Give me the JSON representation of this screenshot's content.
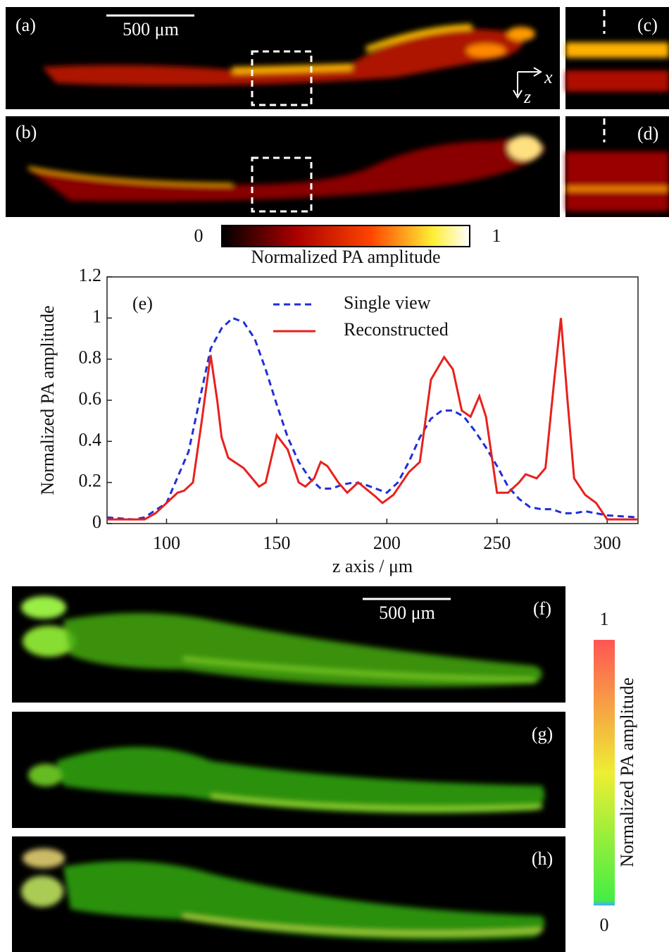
{
  "panel_labels": [
    "(a)",
    "(b)",
    "(c)",
    "(d)",
    "(f)",
    "(g)",
    "(h)"
  ],
  "scale_bars": [
    "500 μm",
    "500 μm"
  ],
  "axis_letters": [
    "x",
    "z"
  ],
  "colorbars": [
    {
      "min": 0,
      "max": 1,
      "label": "Normalized PA amplitude"
    },
    {
      "min": 0,
      "max": 1,
      "label": "Normalized PA amplitude"
    }
  ],
  "chart_data": {
    "type": "line",
    "panel_label": "(e)",
    "x_label": "z axis / μm",
    "y_label": "Normalized PA amplitude",
    "xlim": [
      73,
      314
    ],
    "ylim": [
      0,
      1.2
    ],
    "xticks": [
      100,
      150,
      200,
      250,
      300
    ],
    "yticks": [
      0,
      0.2,
      0.4,
      0.6,
      0.8,
      1,
      1.2
    ],
    "legend": "top-center",
    "series": [
      {
        "name": "Single view",
        "color": "#1f2fd8",
        "dash": true,
        "x": [
          73,
          85,
          90,
          100,
          110,
          115,
          120,
          125,
          130,
          135,
          140,
          145,
          150,
          155,
          160,
          165,
          170,
          175,
          180,
          185,
          190,
          195,
          200,
          205,
          210,
          215,
          220,
          225,
          230,
          235,
          240,
          245,
          250,
          255,
          260,
          265,
          270,
          275,
          280,
          285,
          290,
          295,
          300,
          314
        ],
        "values": [
          0.03,
          0.02,
          0.03,
          0.1,
          0.35,
          0.6,
          0.85,
          0.95,
          1.0,
          0.98,
          0.9,
          0.75,
          0.58,
          0.42,
          0.3,
          0.22,
          0.17,
          0.17,
          0.19,
          0.2,
          0.19,
          0.17,
          0.15,
          0.2,
          0.3,
          0.42,
          0.51,
          0.55,
          0.55,
          0.52,
          0.45,
          0.37,
          0.28,
          0.18,
          0.12,
          0.08,
          0.07,
          0.07,
          0.05,
          0.05,
          0.06,
          0.05,
          0.04,
          0.03
        ]
      },
      {
        "name": "Reconstructed",
        "color": "#e8201c",
        "dash": false,
        "x": [
          73,
          90,
          95,
          100,
          105,
          108,
          112,
          116,
          120,
          123,
          125,
          128,
          135,
          142,
          145,
          150,
          155,
          160,
          163,
          167,
          170,
          173,
          178,
          182,
          187,
          195,
          198,
          203,
          210,
          215,
          220,
          226,
          230,
          234,
          238,
          242,
          245,
          250,
          255,
          260,
          263,
          268,
          272,
          276,
          279,
          282,
          285,
          290,
          295,
          300,
          305,
          314
        ],
        "values": [
          0.02,
          0.02,
          0.05,
          0.1,
          0.15,
          0.16,
          0.2,
          0.5,
          0.82,
          0.6,
          0.42,
          0.32,
          0.27,
          0.18,
          0.2,
          0.43,
          0.36,
          0.2,
          0.18,
          0.22,
          0.3,
          0.28,
          0.2,
          0.15,
          0.2,
          0.13,
          0.1,
          0.14,
          0.25,
          0.3,
          0.7,
          0.81,
          0.75,
          0.55,
          0.52,
          0.62,
          0.52,
          0.15,
          0.15,
          0.2,
          0.24,
          0.22,
          0.27,
          0.7,
          1.0,
          0.6,
          0.22,
          0.14,
          0.1,
          0.02,
          0.02,
          0.02
        ]
      }
    ]
  }
}
